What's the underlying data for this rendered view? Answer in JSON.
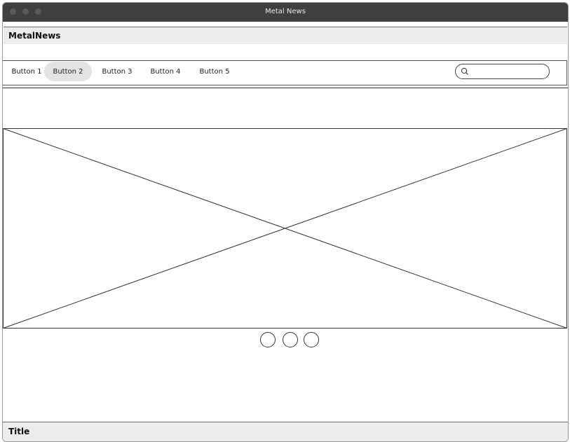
{
  "window": {
    "title": "Metal News"
  },
  "header": {
    "site_title": "MetalNews"
  },
  "nav": {
    "buttons": [
      {
        "label": "Button 1"
      },
      {
        "label": "Button 2"
      },
      {
        "label": "Button 3"
      },
      {
        "label": "Button 4"
      },
      {
        "label": "Button 5"
      }
    ],
    "active_index": 1,
    "search": {
      "value": "",
      "placeholder": ""
    }
  },
  "hero": {
    "image": "image-placeholder"
  },
  "carousel": {
    "pages": 3
  },
  "footer": {
    "title": "Title"
  },
  "colors": {
    "titlebar": "#3f3f3f",
    "bar_bg": "#ececec",
    "active_button": "#e3e3e3"
  }
}
